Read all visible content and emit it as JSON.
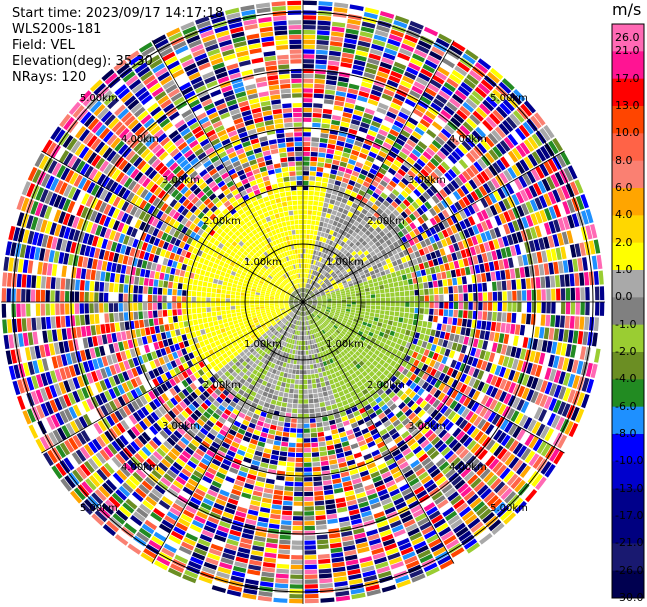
{
  "header": {
    "start_time": "Start time: 2023/09/17 14:17:18",
    "instrument": "WLS200s-181",
    "field": "Field: VEL",
    "elevation": "Elevation(deg): 35.30",
    "nrays": "NRays: 120"
  },
  "colorbar": {
    "unit": "m/s",
    "ticks": [
      "26.0",
      "21.0",
      "17.0",
      "13.0",
      "10.0",
      "8.0",
      "6.0",
      "4.0",
      "2.0",
      "1.0",
      "0.0",
      "-1.0",
      "-2.0",
      "-4.0",
      "-6.0",
      "-8.0",
      "-10.0",
      "-13.0",
      "-17.0",
      "-21.0",
      "-26.0",
      "-30.0"
    ],
    "colors": [
      "#ff69b4",
      "#ff1493",
      "#ff0000",
      "#ff4500",
      "#ff6347",
      "#fa8072",
      "#ffa500",
      "#ffd700",
      "#ffff00",
      "#a9a9a9",
      "#808080",
      "#9acd32",
      "#6b8e23",
      "#228b22",
      "#1e90ff",
      "#0000ff",
      "#0000cd",
      "#00008b",
      "#000080",
      "#191970",
      "#000050"
    ]
  },
  "chart_data": {
    "type": "ppi",
    "title": "",
    "range_rings_km": [
      1,
      2,
      3,
      4,
      5
    ],
    "range_labels": [
      "1.00km",
      "2.00km",
      "3.00km",
      "4.00km",
      "5.00km"
    ],
    "nrays": 120,
    "elevation_deg": 35.3,
    "field": "VEL",
    "units": "m/s",
    "color_levels": [
      -30,
      -26,
      -21,
      -17,
      -13,
      -10,
      -8,
      -6,
      -4,
      -2,
      -1,
      0,
      1,
      2,
      4,
      6,
      8,
      10,
      13,
      17,
      21,
      26
    ],
    "coherent_region": [
      {
        "sector": "west / north-west",
        "velocity_ms": "2.0 to 4.0",
        "color_class": "yellow"
      },
      {
        "sector": "north-east",
        "velocity_ms": "0.0 to 1.0",
        "color_class": "gray"
      },
      {
        "sector": "east / south-east",
        "velocity_ms": "-1.0 to -2.0",
        "color_class": "yellow-green"
      },
      {
        "sector": "south / south-west",
        "velocity_ms": "-1.0 to 0.0",
        "color_class": "gray/green"
      }
    ],
    "noise_beyond_km": 2
  }
}
